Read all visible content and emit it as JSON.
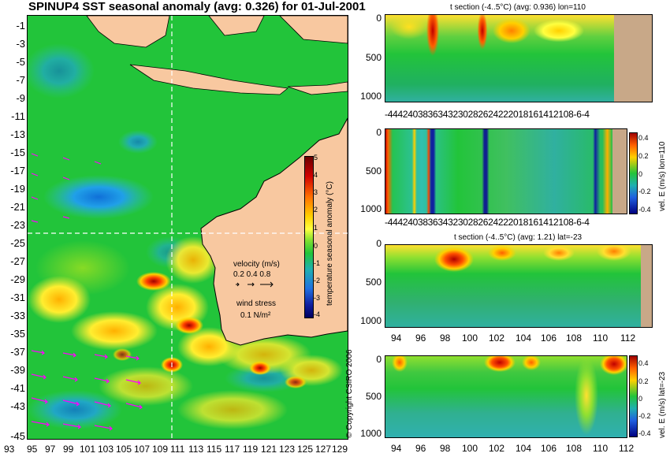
{
  "map": {
    "title": "SPINUP4 SST seasonal anomaly (avg: 0.326) for 01-Jul-2001",
    "lat_ticks": [
      "-1",
      "-3",
      "-5",
      "-7",
      "-9",
      "-11",
      "-13",
      "-15",
      "-17",
      "-19",
      "-21",
      "-23",
      "-25",
      "-27",
      "-29",
      "-31",
      "-33",
      "-35",
      "-37",
      "-39",
      "-41",
      "-43",
      "-45"
    ],
    "lon_ticks": [
      "93",
      "95",
      "97",
      "99",
      "101",
      "103",
      "105",
      "107",
      "109",
      "111",
      "113",
      "115",
      "117",
      "119",
      "121",
      "123",
      "125",
      "127",
      "129"
    ],
    "colorbar": {
      "label": "temperature seasonal anomaly (°C)",
      "ticks": [
        "5",
        "4",
        "3",
        "2",
        "1",
        "0",
        "-1",
        "-2",
        "-3",
        "-4"
      ]
    },
    "velocity_legend": {
      "title": "velocity (m/s)",
      "values": "0.2 0.4 0.8"
    },
    "wind_legend": {
      "title": "wind stress",
      "value": "0.1 N/m²"
    },
    "crosshair": {
      "lat": -23,
      "lon": 110
    },
    "colors": {
      "land": "#f8c8a0",
      "ocean_base": "#22c43a",
      "arrows": "#ff00ff",
      "crosshair": "#ffffff"
    }
  },
  "copyright": "© Copyright CSIRO 2006",
  "panels": [
    {
      "title": "t section (-4..5°C) (avg: 0.936) lon=110",
      "y_ticks": [
        "0",
        "500",
        "1000"
      ],
      "x_ticks": "-4442403836343230282624222018161412108-6-4",
      "side_label": ""
    },
    {
      "title": "",
      "y_ticks": [
        "0",
        "500",
        "1000"
      ],
      "x_ticks": "-4442403836343230282624222018161412108-6-4",
      "side_label": "vel. E (m/s) lon=110",
      "colorbar_ticks": [
        "0.4",
        "0.2",
        "0",
        "-0.2",
        "-0.4"
      ]
    },
    {
      "title": "t section (-4..5°C) (avg: 1.21) lat=-23",
      "y_ticks": [
        "0",
        "500",
        "1000"
      ],
      "x_ticks": [
        "94",
        "96",
        "98",
        "100",
        "102",
        "104",
        "106",
        "108",
        "110",
        "112"
      ],
      "side_label": ""
    },
    {
      "title": "",
      "y_ticks": [
        "0",
        "500",
        "1000"
      ],
      "x_ticks": [
        "94",
        "96",
        "98",
        "100",
        "102",
        "104",
        "106",
        "108",
        "110",
        "112"
      ],
      "side_label": "vel. E (m/s) lat=-23",
      "colorbar_ticks": [
        "0.4",
        "0.2",
        "0",
        "-0.2",
        "-0.4"
      ]
    }
  ]
}
